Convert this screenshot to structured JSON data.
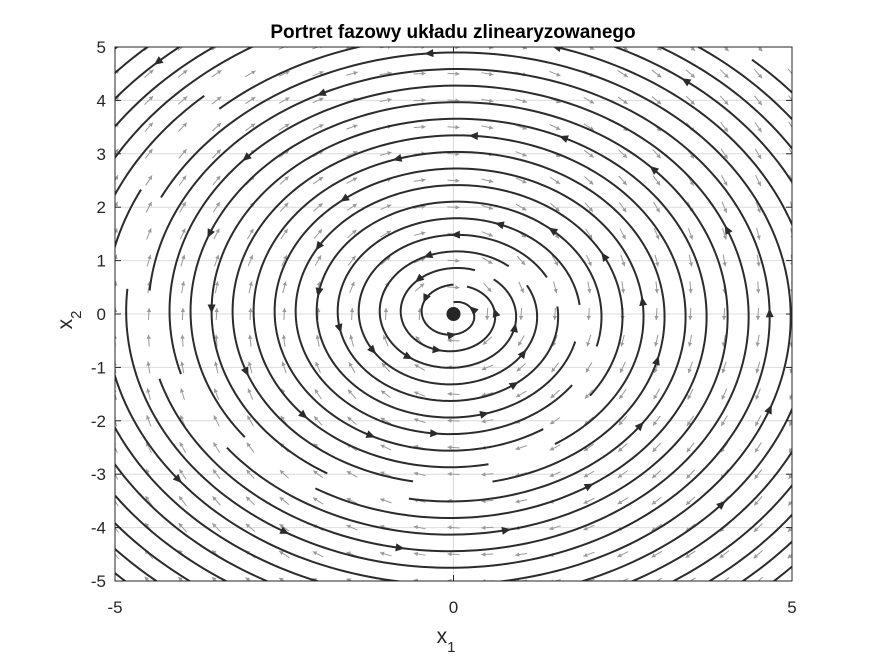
{
  "chart_data": {
    "type": "phase-portrait",
    "title": "Portret fazowy układu zlinearyzowanego",
    "xlabel": {
      "base": "x",
      "sub": "1"
    },
    "ylabel": {
      "base": "x",
      "sub": "2"
    },
    "xlim": [
      -5,
      5
    ],
    "ylim": [
      -5,
      5
    ],
    "xticks": [
      -5,
      0,
      5
    ],
    "yticks": [
      -5,
      -4,
      -3,
      -2,
      -1,
      0,
      1,
      2,
      3,
      4,
      5
    ],
    "grid": true,
    "equilibrium": {
      "x": 0,
      "y": 0
    },
    "trajectory_style": "clockwise-spiral-inward",
    "quiver_spacing": 0.5,
    "colors": {
      "trajectory": "#2b2b2b",
      "vector_field": "#9a9a9a",
      "grid": "#dcdcdc",
      "equilibrium": "#262626"
    }
  }
}
